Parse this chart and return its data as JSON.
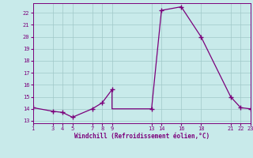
{
  "x": [
    1,
    3,
    4,
    5,
    7,
    8,
    9,
    9,
    13,
    14,
    16,
    18,
    21,
    22,
    23
  ],
  "y": [
    14.1,
    13.8,
    13.7,
    13.3,
    14.0,
    14.5,
    15.6,
    14.0,
    14.0,
    22.2,
    22.5,
    20.0,
    15.0,
    14.1,
    14.0
  ],
  "x_markers": [
    1,
    3,
    4,
    5,
    7,
    8,
    9,
    13,
    14,
    16,
    18,
    21,
    22,
    23
  ],
  "y_markers": [
    14.1,
    13.8,
    13.7,
    13.3,
    14.0,
    14.5,
    15.6,
    14.0,
    22.2,
    22.5,
    20.0,
    15.0,
    14.1,
    14.0
  ],
  "xticks": [
    1,
    3,
    4,
    5,
    7,
    8,
    9,
    13,
    14,
    16,
    18,
    21,
    22,
    23
  ],
  "yticks": [
    13,
    14,
    15,
    16,
    17,
    18,
    19,
    20,
    21,
    22
  ],
  "xlim": [
    1,
    23
  ],
  "ylim": [
    12.8,
    22.8
  ],
  "xlabel": "Windchill (Refroidissement éolien,°C)",
  "line_color": "#7b007b",
  "marker_color": "#7b007b",
  "bg_color": "#c8eaea",
  "grid_color": "#a0c8c8",
  "tick_color": "#7b007b",
  "label_color": "#7b007b"
}
